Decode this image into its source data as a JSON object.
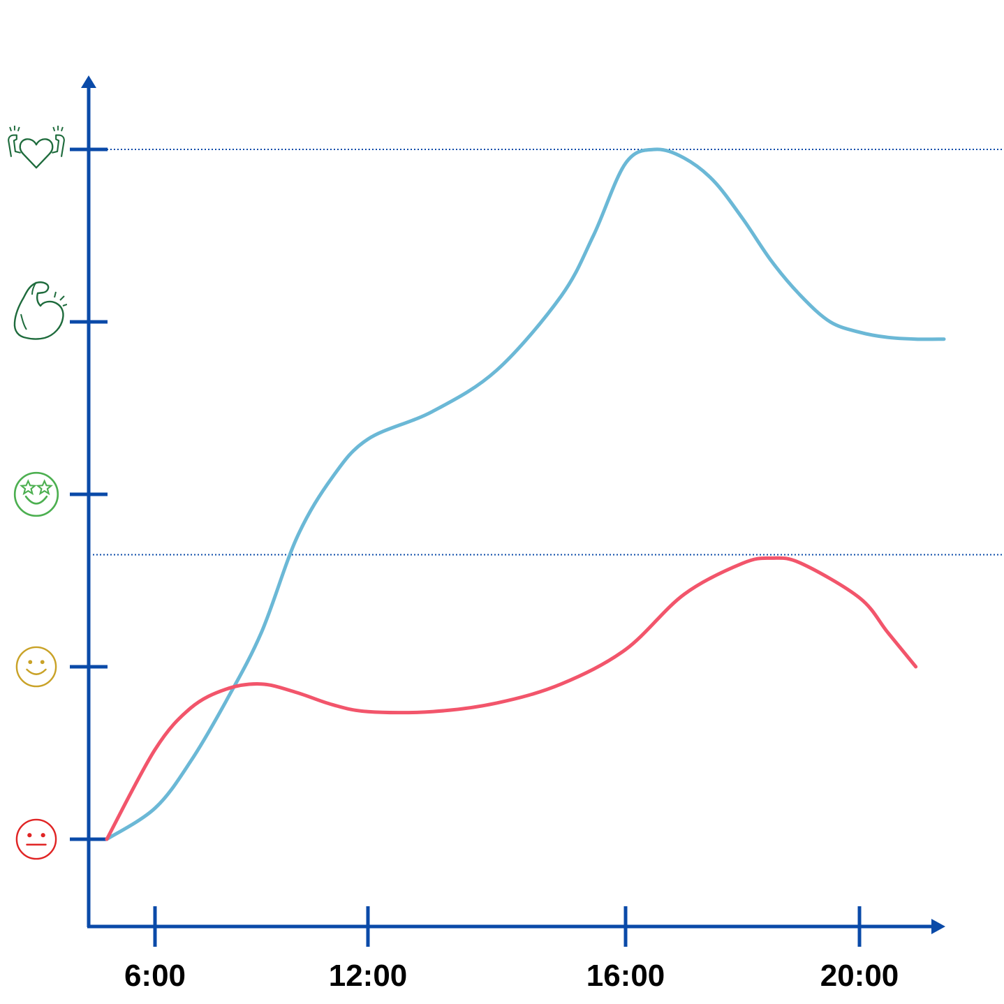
{
  "chart_data": {
    "type": "line",
    "title": "",
    "xlabel": "",
    "ylabel": "",
    "x_ticks": [
      {
        "hour": 6,
        "label": "6:00"
      },
      {
        "hour": 12,
        "label": "12:00"
      },
      {
        "hour": 16,
        "label": "16:00"
      },
      {
        "hour": 20,
        "label": "20:00"
      }
    ],
    "y_levels": [
      {
        "level": 0,
        "icon": "neutral-face-icon",
        "color": "#e02424"
      },
      {
        "level": 1,
        "icon": "smiling-face-icon",
        "color": "#c9a227"
      },
      {
        "level": 2,
        "icon": "star-eyes-face-icon",
        "color": "#4caf50"
      },
      {
        "level": 3,
        "icon": "flexed-biceps-icon",
        "color": "#1e6b3c"
      },
      {
        "level": 4,
        "icon": "strong-heart-icon",
        "color": "#1e6b3c"
      }
    ],
    "reference_lines": [
      {
        "level": 4,
        "style": "dotted"
      },
      {
        "level": 1.65,
        "style": "dotted"
      }
    ],
    "series": [
      {
        "color": "#6bb8d6",
        "points": [
          [
            5,
            0
          ],
          [
            6,
            0.18
          ],
          [
            7,
            0.45
          ],
          [
            8,
            0.8
          ],
          [
            9,
            1.2
          ],
          [
            10,
            1.75
          ],
          [
            11,
            2.1
          ],
          [
            12,
            2.32
          ],
          [
            13,
            2.48
          ],
          [
            14,
            2.72
          ],
          [
            15,
            3.15
          ],
          [
            15.5,
            3.5
          ],
          [
            16,
            3.92
          ],
          [
            16.5,
            4.0
          ],
          [
            17,
            3.95
          ],
          [
            17.5,
            3.82
          ],
          [
            18,
            3.6
          ],
          [
            18.5,
            3.35
          ],
          [
            19,
            3.15
          ],
          [
            19.5,
            3.0
          ],
          [
            20,
            2.94
          ],
          [
            20.5,
            2.91
          ],
          [
            21,
            2.9
          ],
          [
            21.5,
            2.9
          ]
        ]
      },
      {
        "color": "#f2556b",
        "points": [
          [
            5,
            0
          ],
          [
            6,
            0.52
          ],
          [
            7,
            0.76
          ],
          [
            8,
            0.87
          ],
          [
            9,
            0.9
          ],
          [
            10,
            0.85
          ],
          [
            11,
            0.78
          ],
          [
            12,
            0.74
          ],
          [
            13,
            0.74
          ],
          [
            14,
            0.79
          ],
          [
            15,
            0.9
          ],
          [
            16,
            1.1
          ],
          [
            17,
            1.42
          ],
          [
            18,
            1.6
          ],
          [
            18.5,
            1.63
          ],
          [
            19,
            1.6
          ],
          [
            20,
            1.4
          ],
          [
            20.5,
            1.2
          ],
          [
            21,
            1.0
          ]
        ]
      }
    ]
  }
}
